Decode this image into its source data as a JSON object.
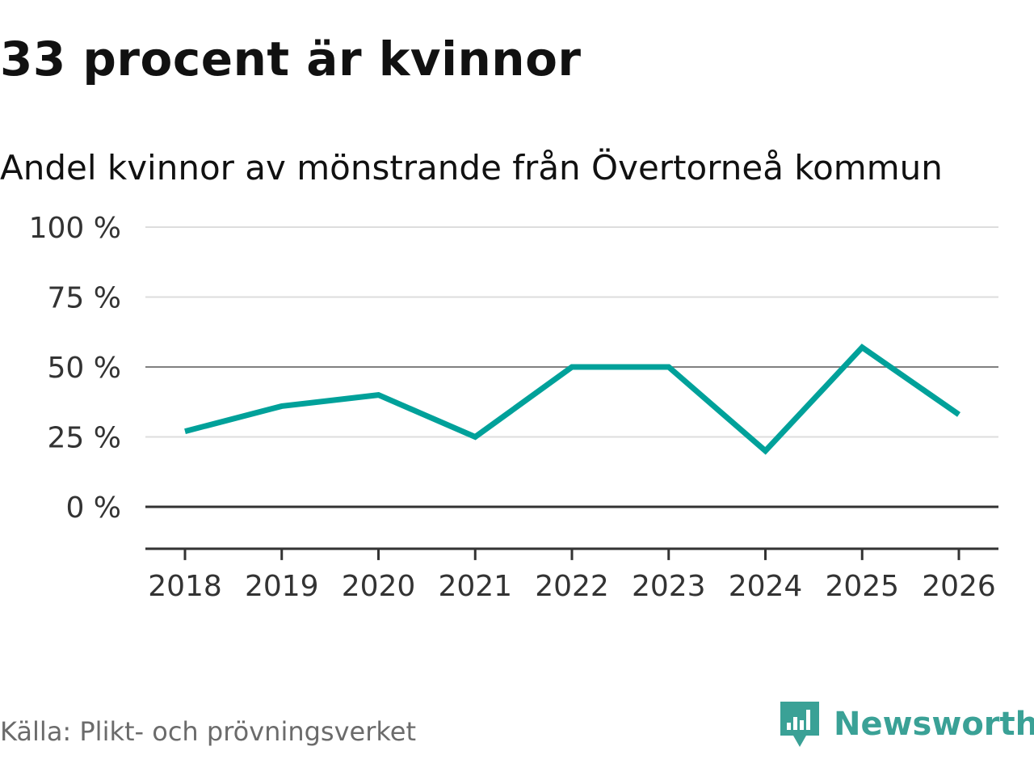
{
  "header": {
    "title": "33 procent är kvinnor"
  },
  "chart_data": {
    "type": "line",
    "title": "Andel kvinnor av mönstrande från Övertorneå kommun",
    "xlabel": "",
    "ylabel": "",
    "categories": [
      "2018",
      "2019",
      "2020",
      "2021",
      "2022",
      "2023",
      "2024",
      "2025",
      "2026"
    ],
    "series": [
      {
        "name": "Andel kvinnor",
        "values": [
          27,
          36,
          40,
          25,
          50,
          50,
          20,
          57,
          33
        ]
      }
    ],
    "ylim": [
      -15,
      100
    ],
    "yticks": [
      0,
      25,
      50,
      75,
      100
    ],
    "ytick_labels": [
      "0 %",
      "25 %",
      "50 %",
      "75 %",
      "100 %"
    ],
    "grid": true,
    "line_color": "#00a19a"
  },
  "footer": {
    "source": "Källa: Plikt- och prövningsverket",
    "brand": "Newsworthy",
    "brand_color": "#3aa196"
  }
}
